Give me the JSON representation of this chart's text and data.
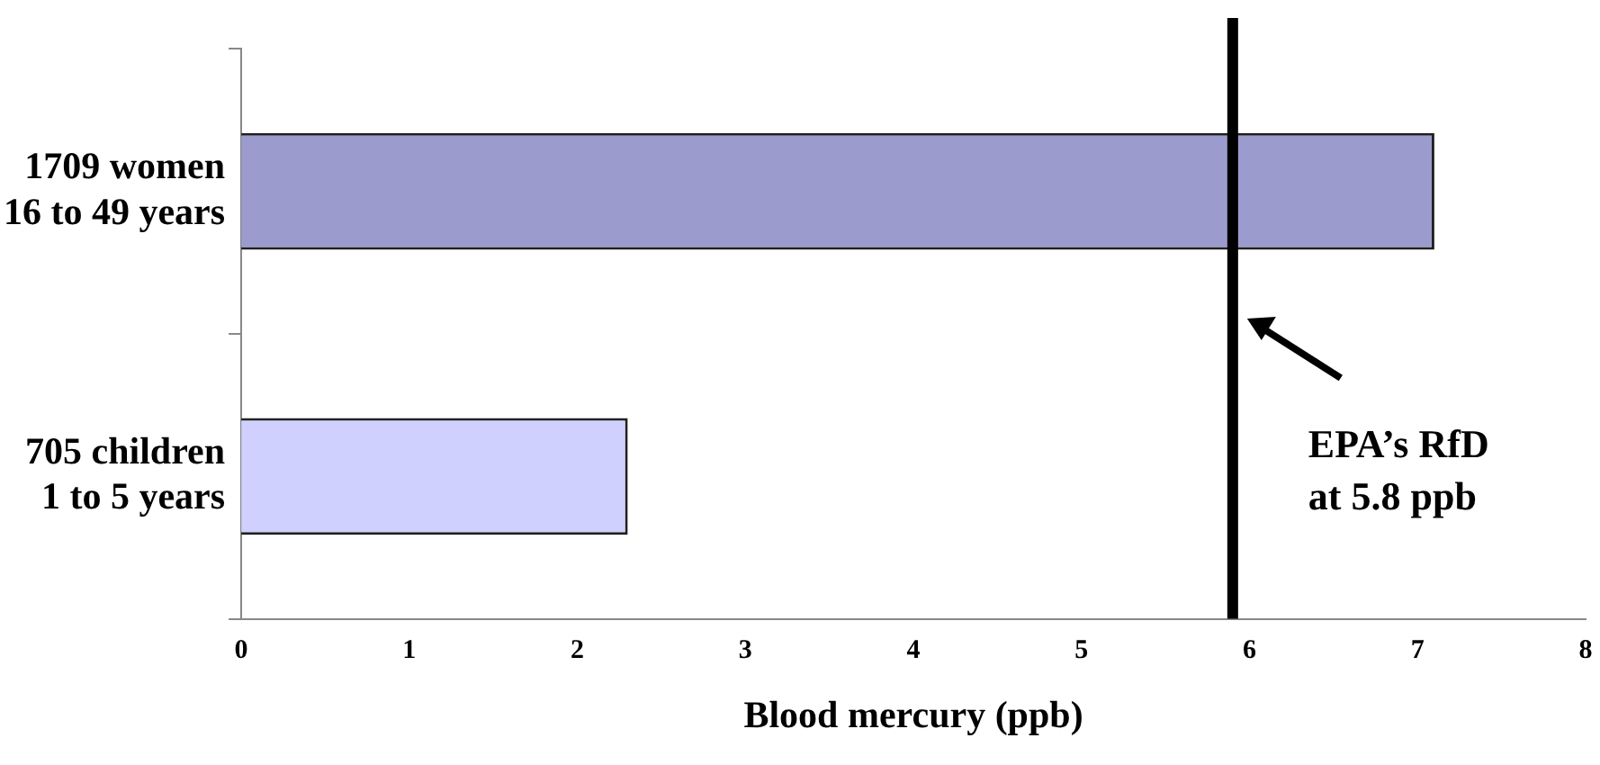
{
  "chart_data": {
    "type": "bar",
    "orientation": "horizontal",
    "xlabel": "Blood mercury (ppb)",
    "categories": [
      "1709 women\n16 to 49 years",
      "705 children\n1 to 5 years"
    ],
    "values": [
      7.1,
      2.3
    ],
    "colors": [
      "#9b9bcd",
      "#d0d0ff"
    ],
    "xlim": [
      0,
      8
    ],
    "xticks": [
      0,
      1,
      2,
      3,
      4,
      5,
      6,
      7,
      8
    ],
    "grid": false,
    "legend": false,
    "ref_lines": [
      {
        "axis": "x",
        "value": 5.9,
        "label": "EPA’s RfD\nat 5.8 ppb",
        "color": "#000000"
      }
    ]
  }
}
